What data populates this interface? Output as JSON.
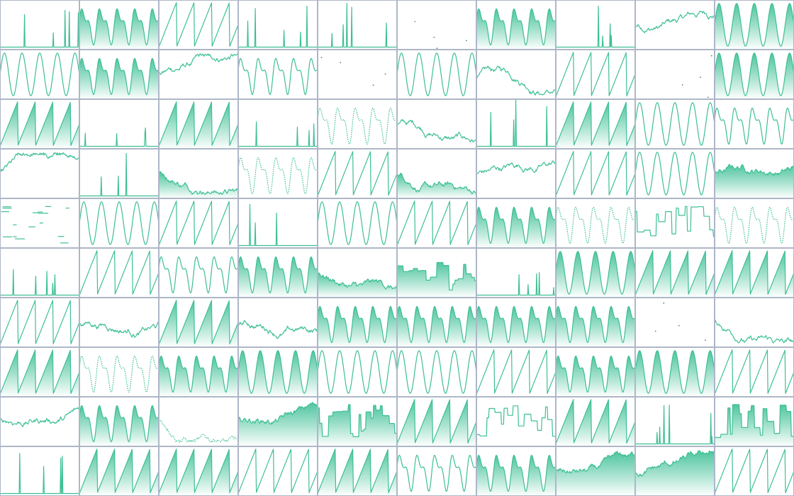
{
  "colors": {
    "line": "#3dbf95",
    "fill_top": "#3dbf95",
    "fill_bottom": "#ffffff",
    "grid_border": "#aeb6c8",
    "background": "#ffffff"
  },
  "chart_data": {
    "type": "grid of sparkline mini-charts",
    "title": "",
    "rows": 10,
    "cols": 10,
    "cells": [
      [
        "spikes-line",
        "sine-harmonic-area",
        "sawtooth-line",
        "spikes-line",
        "spikes-line",
        "dots",
        "sine-harmonic-area",
        "spikes-line",
        "walk-line",
        "sine-area"
      ],
      [
        "sine-line",
        "sine-harmonic-area",
        "walk-line",
        "sine-harmonic-line",
        "dots",
        "sine-line",
        "walk-line",
        "sawtooth-line",
        "dots",
        "sine-area"
      ],
      [
        "sawtooth-area",
        "spikes-line",
        "sawtooth-area",
        "spikes-line",
        "sine-harmonic-dotted",
        "walk-line",
        "spikes-line",
        "sawtooth-area",
        "sine-line",
        "sine-harmonic-line"
      ],
      [
        "walk-line",
        "spikes-line",
        "walk-area",
        "sine-harmonic-dotted",
        "sawtooth-line",
        "walk-area",
        "walk-line",
        "sawtooth-line",
        "sine-line",
        "walk-area"
      ],
      [
        "dashes",
        "sine-line",
        "sawtooth-line",
        "spikes-line",
        "sine-line",
        "sawtooth-line",
        "sine-harmonic-area",
        "sine-harmonic-dotted",
        "step-line",
        "sine-harmonic-dotted"
      ],
      [
        "spikes-line",
        "sawtooth-line",
        "sine-harmonic-line",
        "sine-harmonic-area",
        "walk-area",
        "step-area",
        "spikes-line",
        "sine-area",
        "sawtooth-area",
        "sawtooth-area"
      ],
      [
        "sawtooth-line",
        "walk-line",
        "sawtooth-area",
        "walk-line",
        "sine-harmonic-area",
        "sine-harmonic-area",
        "sine-harmonic-area",
        "sine-harmonic-area",
        "dots",
        "walk-line"
      ],
      [
        "sawtooth-area",
        "sine-harmonic-dotted",
        "sine-harmonic-area",
        "sine-area",
        "sine-line",
        "sine-line",
        "sawtooth-line",
        "sine-harmonic-area",
        "sine-area",
        "sawtooth-line"
      ],
      [
        "walk-line",
        "sine-harmonic-area",
        "walk-dotted",
        "walk-area",
        "step-area",
        "sawtooth-area",
        "step-line",
        "sawtooth-area",
        "spikes-line",
        "step-area"
      ],
      [
        "spikes-line",
        "sawtooth-area",
        "sawtooth-area",
        "sawtooth-line",
        "sawtooth-area",
        "sine-harmonic-line",
        "sine-harmonic-area",
        "walk-area",
        "walk-area",
        "sawtooth-line"
      ]
    ]
  }
}
